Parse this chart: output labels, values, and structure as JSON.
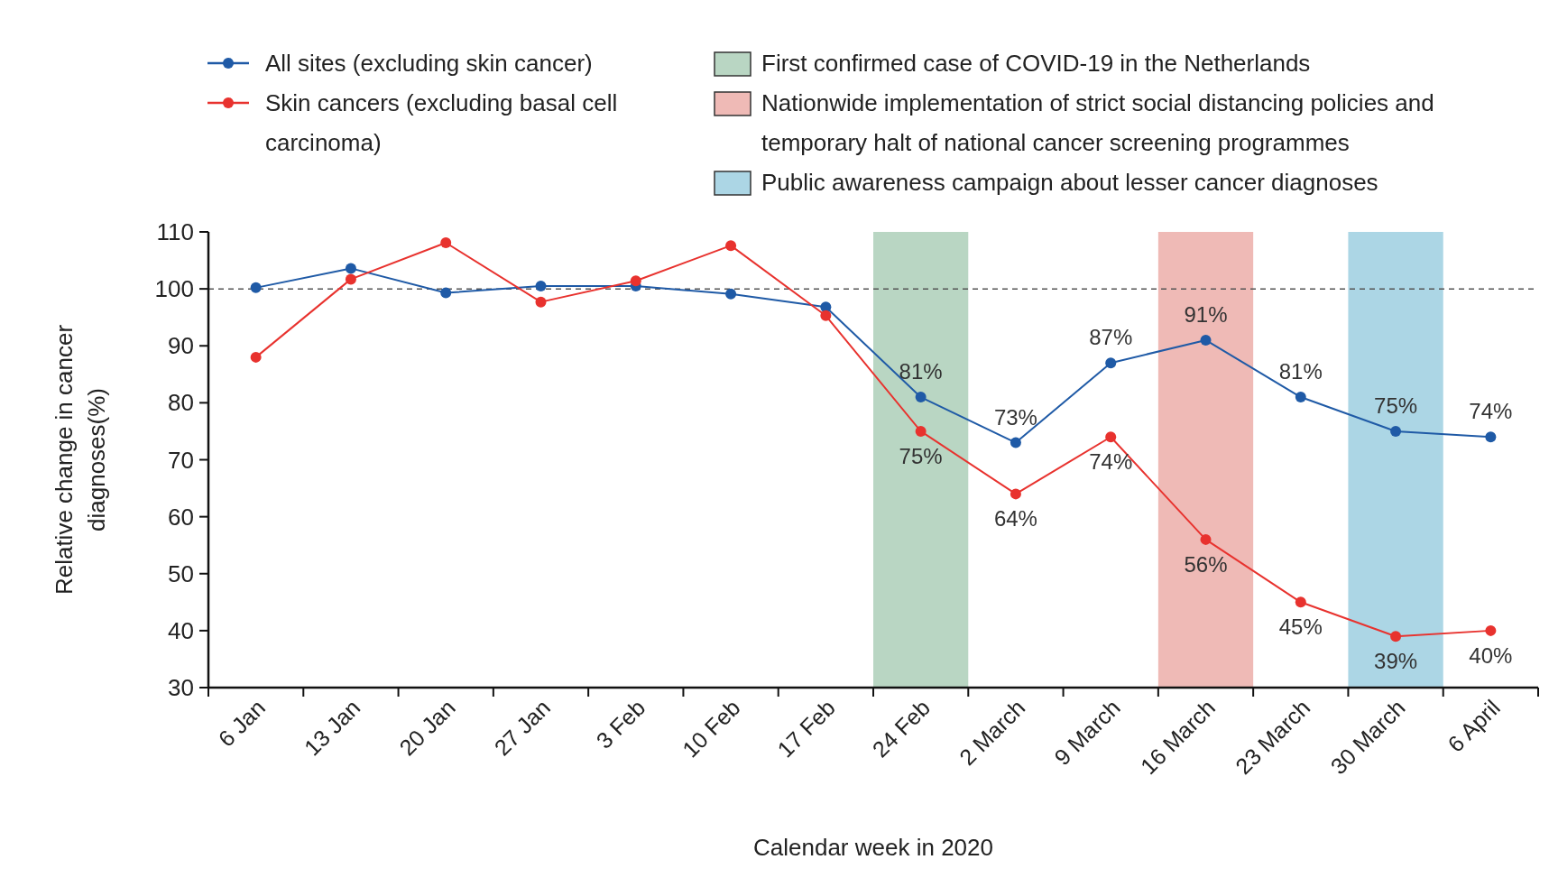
{
  "chart_data": {
    "type": "line",
    "xlabel": "Calendar week in 2020",
    "ylabel": "Relative change in cancer diagnoses(%)",
    "categories": [
      "6 Jan",
      "13 Jan",
      "20 Jan",
      "27 Jan",
      "3 Feb",
      "10 Feb",
      "17 Feb",
      "24 Feb",
      "2 March",
      "9 March",
      "16 March",
      "23 March",
      "30 March",
      "6 April"
    ],
    "series": [
      {
        "name": "All sites (excluding skin cancer)",
        "color": "#1f5aa6",
        "values": [
          100.2,
          103.6,
          99.3,
          100.5,
          100.5,
          99.1,
          96.8,
          81,
          73,
          87,
          91,
          81,
          75,
          74
        ],
        "value_labels": [
          null,
          null,
          null,
          null,
          null,
          null,
          null,
          "81%",
          "73%",
          "87%",
          "91%",
          "81%",
          "75%",
          "74%"
        ]
      },
      {
        "name": "Skin cancers (excluding basal cell carcinoma)",
        "color": "#e8322e",
        "values": [
          88,
          101.7,
          108.1,
          97.7,
          101.4,
          107.6,
          95.3,
          75,
          64,
          74,
          56,
          45,
          39,
          40
        ],
        "value_labels": [
          null,
          null,
          null,
          null,
          null,
          null,
          null,
          "75%",
          "64%",
          "74%",
          "56%",
          "45%",
          "39%",
          "40%"
        ]
      }
    ],
    "ylim": [
      30,
      110
    ],
    "yticks": [
      30,
      40,
      50,
      60,
      70,
      80,
      90,
      100,
      110
    ],
    "grid": false,
    "marker": "circle",
    "line_style": "solid",
    "legend": "top",
    "ref_lines": [
      {
        "axis": "y",
        "value": 100,
        "line_style": "dashed",
        "color": "#555555"
      }
    ],
    "bands": [
      {
        "axis": "x",
        "from": "24 Feb",
        "to": "24 Feb",
        "label": "First confirmed case of COVID-19 in the Netherlands",
        "color": "#b9d6c3"
      },
      {
        "axis": "x",
        "from": "16 March",
        "to": "16 March",
        "label": "Nationwide implementation of strict social distancing policies and temporary halt of national cancer screening programmes",
        "color": "#efbab6"
      },
      {
        "axis": "x",
        "from": "30 March",
        "to": "30 March",
        "label": "Public awareness campaign about lesser cancer diagnoses",
        "color": "#acd6e5"
      }
    ]
  }
}
